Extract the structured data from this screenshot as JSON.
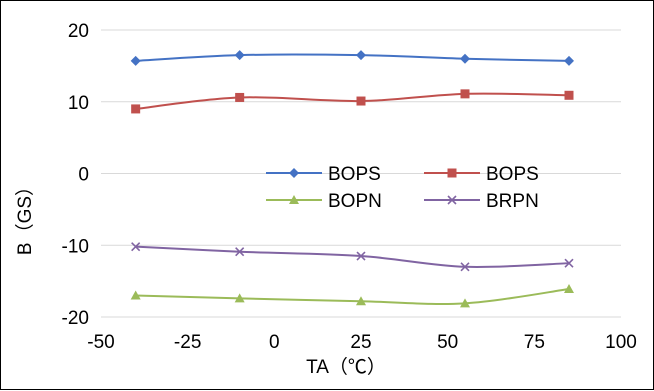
{
  "chart_data": {
    "type": "line",
    "title": "",
    "xlabel": "TA（℃）",
    "ylabel": "B（GS）",
    "xlim": [
      -50,
      100
    ],
    "ylim": [
      -20,
      20
    ],
    "x_ticks": [
      "-50",
      "-25",
      "0",
      "25",
      "50",
      "75",
      "100"
    ],
    "y_ticks": [
      "20",
      "10",
      "0",
      "-10",
      "-20"
    ],
    "grid": "horizontal",
    "legend_position": "center",
    "x": [
      -40,
      -10,
      25,
      55,
      85
    ],
    "series": [
      {
        "name": "BOPS",
        "color": "#4472C4",
        "marker": "diamond",
        "values": [
          15.7,
          16.5,
          16.5,
          16.0,
          15.7
        ]
      },
      {
        "name": "BOPS",
        "color": "#C0504D",
        "marker": "square",
        "values": [
          9.0,
          10.6,
          10.1,
          11.1,
          10.9
        ]
      },
      {
        "name": "BOPN",
        "color": "#9BBB59",
        "marker": "triangle",
        "values": [
          -17.0,
          -17.4,
          -17.8,
          -18.1,
          -16.1
        ]
      },
      {
        "name": "BRPN",
        "color": "#8064A2",
        "marker": "x",
        "values": [
          -10.2,
          -10.9,
          -11.5,
          -13.0,
          -12.5
        ]
      }
    ]
  }
}
